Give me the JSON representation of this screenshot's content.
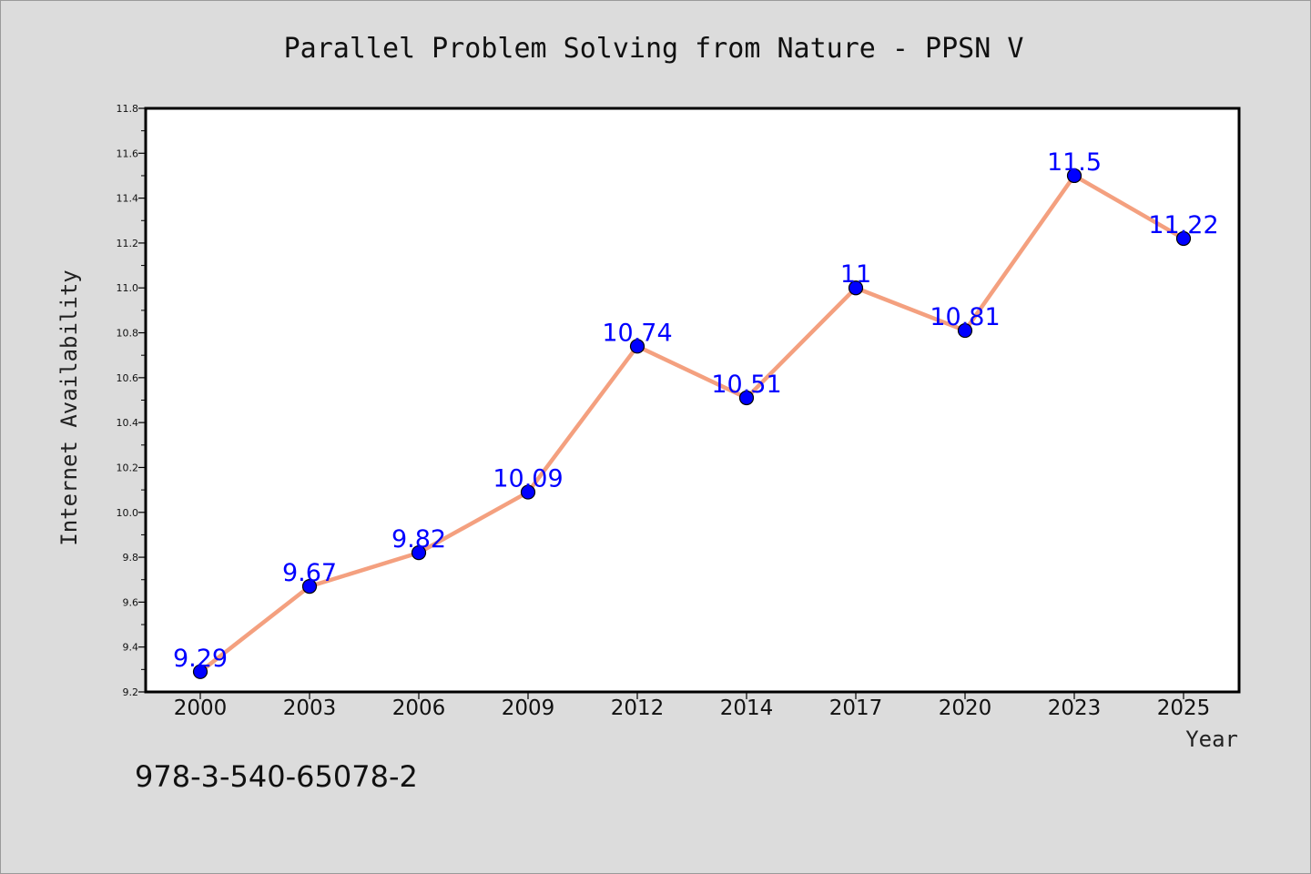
{
  "chart_data": {
    "type": "line",
    "title": "Parallel Problem Solving from Nature - PPSN V",
    "xlabel": "Year",
    "ylabel": "Internet Availability",
    "categories": [
      "2000",
      "2003",
      "2006",
      "2009",
      "2012",
      "2014",
      "2017",
      "2020",
      "2023",
      "2025"
    ],
    "series": [
      {
        "values": [
          9.29,
          9.67,
          9.82,
          10.09,
          10.74,
          10.51,
          11,
          10.81,
          11.5,
          11.22
        ],
        "data_labels": [
          "9.29",
          "9.67",
          "9.82",
          "10.09",
          "10.74",
          "10.51",
          "11",
          "10.81",
          "11.5",
          "11.22"
        ],
        "line_color": "#f4a07f",
        "marker_color": "#0000ff"
      }
    ],
    "ylim": [
      9.2,
      11.8
    ],
    "yticks": [
      "9.2",
      "9.4",
      "9.6",
      "9.8",
      "10.0",
      "10.2",
      "10.4",
      "10.6",
      "10.8",
      "11.0",
      "11.2",
      "11.4",
      "11.6",
      "11.8"
    ],
    "grid": false,
    "legend": "none"
  },
  "footer": {
    "isbn": "978-3-540-65078-2"
  },
  "colors": {
    "background": "#dcdcdc",
    "plot_area": "#ffffff",
    "label": "#0000ff"
  }
}
